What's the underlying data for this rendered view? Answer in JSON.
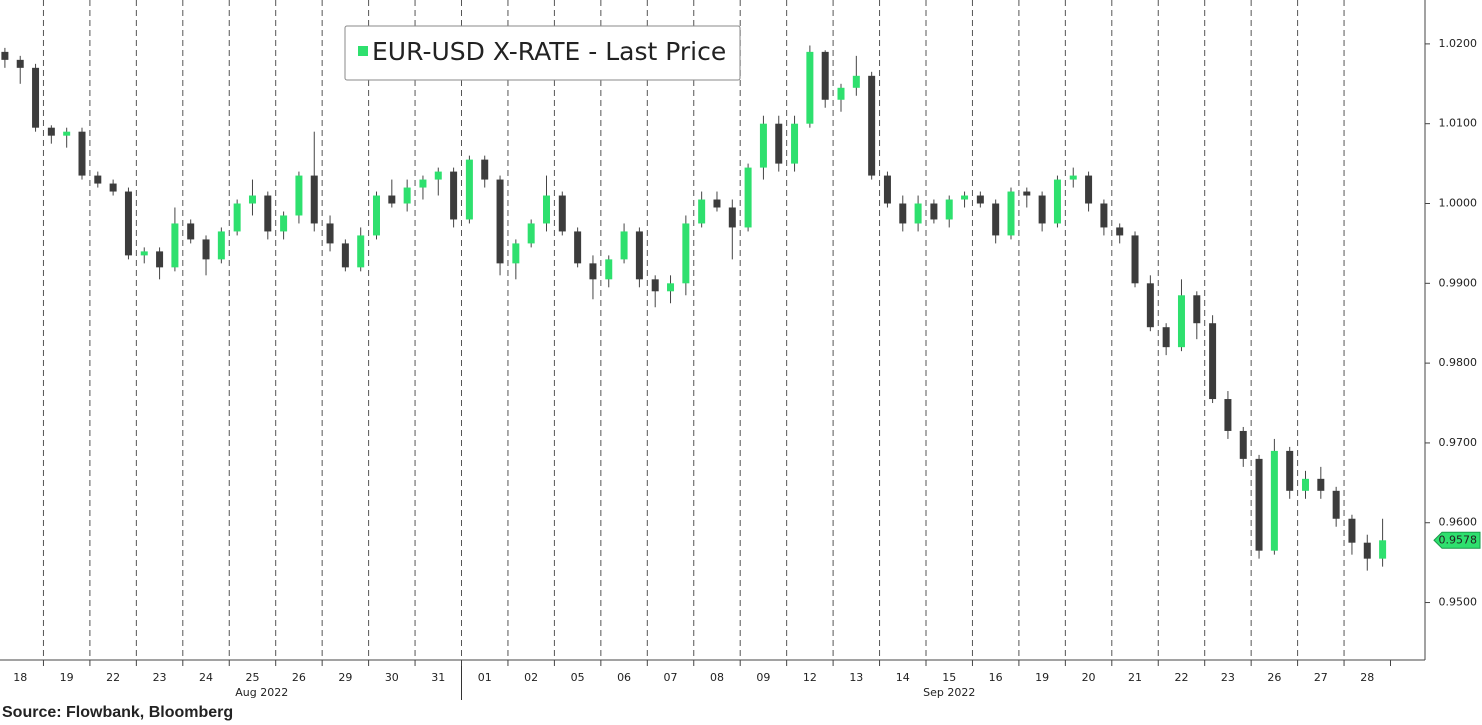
{
  "chart_data": {
    "type": "candlestick",
    "legend": "EUR-USD X-RATE - Last Price",
    "source": "Source: Flowbank, Bloomberg",
    "up_color": "#2ee06e",
    "down_color": "#3c3c3c",
    "x_group_labels": [
      "Aug 2022",
      "Sep 2022"
    ],
    "x": [
      0.17,
      0.5,
      0.83,
      1.17,
      1.5,
      1.83,
      2.17,
      2.5,
      2.83,
      3.17,
      3.5,
      3.83,
      4.17,
      4.5,
      4.83,
      5.17,
      5.5,
      5.83,
      6.17,
      6.5,
      6.83,
      7.17,
      7.5,
      7.83,
      8.17,
      8.5,
      8.83,
      9.17,
      9.5,
      9.83,
      10.17,
      10.5,
      10.83,
      11.17,
      11.5,
      11.83,
      12.17,
      12.5,
      12.83,
      13.17,
      13.5,
      13.83,
      14.17,
      14.5,
      14.83,
      15.17,
      15.5,
      15.83,
      16.17,
      16.5,
      16.83,
      17.17,
      17.5,
      17.83,
      18.17,
      18.5,
      18.83,
      19.17,
      19.5,
      19.83,
      20.17,
      20.5,
      20.83,
      21.17,
      21.5,
      21.83,
      22.17,
      22.5,
      22.83,
      23.17,
      23.5,
      23.83,
      24.17,
      24.5,
      24.83,
      25.17,
      25.5,
      25.83,
      26.17,
      26.5,
      26.83,
      27.17,
      27.5,
      27.83,
      28.17,
      28.5,
      28.83,
      29.17,
      29.5,
      29.83
    ],
    "open": [
      1.019,
      1.018,
      1.017,
      1.0095,
      1.0085,
      1.009,
      1.0035,
      1.0025,
      1.0015,
      0.9935,
      0.994,
      0.992,
      0.9975,
      0.9955,
      0.993,
      0.9965,
      1.0,
      1.001,
      0.9965,
      0.9985,
      1.0035,
      0.9975,
      0.995,
      0.992,
      0.996,
      1.001,
      1.0,
      1.002,
      1.003,
      1.004,
      0.998,
      1.0055,
      1.003,
      0.9925,
      0.995,
      0.9975,
      1.001,
      0.9965,
      0.9925,
      0.9905,
      0.993,
      0.9965,
      0.9905,
      0.989,
      0.99,
      0.9975,
      1.0005,
      0.9995,
      0.997,
      1.0045,
      1.01,
      1.005,
      1.01,
      1.019,
      1.013,
      1.0145,
      1.016,
      1.0035,
      1.0,
      0.9975,
      1.0,
      0.998,
      1.0005,
      1.001,
      1.0,
      0.996,
      1.0015,
      1.001,
      0.9975,
      1.003,
      1.0035,
      1.0,
      0.997,
      0.996,
      0.99,
      0.9845,
      0.982,
      0.9885,
      0.985,
      0.9755,
      0.9715,
      0.968,
      0.9565,
      0.969,
      0.964,
      0.9655,
      0.964,
      0.9605,
      0.9575,
      0.9555
    ],
    "high": [
      1.0195,
      1.0185,
      1.0175,
      1.0098,
      1.0095,
      1.0095,
      1.004,
      1.003,
      1.002,
      0.9945,
      0.9945,
      0.9995,
      0.998,
      0.996,
      0.997,
      1.0005,
      1.003,
      1.0015,
      0.999,
      1.004,
      1.009,
      0.9985,
      0.9955,
      0.997,
      1.0015,
      1.003,
      1.003,
      1.0035,
      1.0045,
      1.0045,
      1.006,
      1.006,
      1.0035,
      0.9955,
      0.998,
      1.0035,
      1.0015,
      0.997,
      0.9935,
      0.9935,
      0.9975,
      0.997,
      0.991,
      0.991,
      0.9985,
      1.0015,
      1.0015,
      1.0005,
      1.005,
      1.011,
      1.011,
      1.011,
      1.0198,
      1.0192,
      1.015,
      1.0185,
      1.0165,
      1.004,
      1.001,
      1.001,
      1.0005,
      1.001,
      1.0015,
      1.0015,
      1.0005,
      1.002,
      1.002,
      1.0015,
      1.0035,
      1.0045,
      1.004,
      1.0005,
      0.9975,
      0.9965,
      0.991,
      0.985,
      0.9905,
      0.989,
      0.986,
      0.9765,
      0.972,
      0.9685,
      0.9705,
      0.9695,
      0.9665,
      0.967,
      0.9645,
      0.961,
      0.9585,
      0.9605
    ],
    "low": [
      1.017,
      1.015,
      1.009,
      1.0075,
      1.007,
      1.003,
      1.002,
      1.001,
      0.993,
      0.9925,
      0.9905,
      0.9915,
      0.995,
      0.991,
      0.9925,
      0.996,
      0.9985,
      0.9955,
      0.9955,
      0.9975,
      0.9965,
      0.994,
      0.9915,
      0.9915,
      0.9955,
      0.9995,
      0.999,
      1.0005,
      1.001,
      0.997,
      0.9975,
      1.002,
      0.991,
      0.9905,
      0.9945,
      0.9965,
      0.996,
      0.992,
      0.988,
      0.9895,
      0.9925,
      0.9895,
      0.987,
      0.9875,
      0.9885,
      0.997,
      0.999,
      0.993,
      0.9965,
      1.003,
      1.004,
      1.004,
      1.0095,
      1.012,
      1.0115,
      1.0135,
      1.003,
      0.9995,
      0.9965,
      0.9965,
      0.9975,
      0.997,
      0.9995,
      0.9995,
      0.995,
      0.9955,
      0.9995,
      0.9965,
      0.997,
      1.002,
      0.999,
      0.996,
      0.995,
      0.9895,
      0.984,
      0.981,
      0.9815,
      0.983,
      0.975,
      0.9705,
      0.967,
      0.9555,
      0.956,
      0.963,
      0.963,
      0.963,
      0.9595,
      0.956,
      0.954,
      0.9545
    ],
    "close": [
      1.018,
      1.017,
      1.0095,
      1.0085,
      1.009,
      1.0035,
      1.0025,
      1.0015,
      0.9935,
      0.994,
      0.992,
      0.9975,
      0.9955,
      0.993,
      0.9965,
      1.0,
      1.001,
      0.9965,
      0.9985,
      1.0035,
      0.9975,
      0.995,
      0.992,
      0.996,
      1.001,
      1.0,
      1.002,
      1.003,
      1.004,
      0.998,
      1.0055,
      1.003,
      0.9925,
      0.995,
      0.9975,
      1.001,
      0.9965,
      0.9925,
      0.9905,
      0.993,
      0.9965,
      0.9905,
      0.989,
      0.99,
      0.9975,
      1.0005,
      0.9995,
      0.997,
      1.0045,
      1.01,
      1.005,
      1.01,
      1.019,
      1.013,
      1.0145,
      1.016,
      1.0035,
      1.0,
      0.9975,
      1.0,
      0.998,
      1.0005,
      1.001,
      1.0,
      0.996,
      1.0015,
      1.001,
      0.9975,
      1.003,
      1.0035,
      1.0,
      0.997,
      0.996,
      0.99,
      0.9845,
      0.982,
      0.9885,
      0.985,
      0.9755,
      0.9715,
      0.968,
      0.9565,
      0.969,
      0.964,
      0.9655,
      0.964,
      0.9605,
      0.9575,
      0.9555,
      0.9578
    ],
    "xlim": [
      0,
      30
    ],
    "xticks": [
      {
        "value": 0.5,
        "label": "18"
      },
      {
        "value": 1.5,
        "label": "19"
      },
      {
        "value": 2.5,
        "label": "22"
      },
      {
        "value": 3.5,
        "label": "23"
      },
      {
        "value": 4.5,
        "label": "24"
      },
      {
        "value": 5.5,
        "label": "25"
      },
      {
        "value": 6.5,
        "label": "26"
      },
      {
        "value": 7.5,
        "label": "29"
      },
      {
        "value": 8.5,
        "label": "30"
      },
      {
        "value": 9.5,
        "label": "31"
      },
      {
        "value": 10.5,
        "label": "01"
      },
      {
        "value": 11.5,
        "label": "02"
      },
      {
        "value": 12.5,
        "label": "05"
      },
      {
        "value": 13.5,
        "label": "06"
      },
      {
        "value": 14.5,
        "label": "07"
      },
      {
        "value": 15.5,
        "label": "08"
      },
      {
        "value": 16.5,
        "label": "09"
      },
      {
        "value": 17.5,
        "label": "12"
      },
      {
        "value": 18.5,
        "label": "13"
      },
      {
        "value": 19.5,
        "label": "14"
      },
      {
        "value": 20.5,
        "label": "15"
      },
      {
        "value": 21.5,
        "label": "16"
      },
      {
        "value": 22.5,
        "label": "19"
      },
      {
        "value": 23.5,
        "label": "20"
      },
      {
        "value": 24.5,
        "label": "21"
      },
      {
        "value": 25.5,
        "label": "22"
      },
      {
        "value": 26.5,
        "label": "23"
      },
      {
        "value": 27.5,
        "label": "26"
      },
      {
        "value": 28.5,
        "label": "27"
      },
      {
        "value": 29.5,
        "label": "28"
      }
    ],
    "ylim": [
      0.9428,
      1.0255
    ],
    "yticks": [
      {
        "value": 0.95,
        "label": "0.9500"
      },
      {
        "value": 0.96,
        "label": "0.9600"
      },
      {
        "value": 0.97,
        "label": "0.9700"
      },
      {
        "value": 0.98,
        "label": "0.9800"
      },
      {
        "value": 0.99,
        "label": "0.9900"
      },
      {
        "value": 1.0,
        "label": "1.0000"
      },
      {
        "value": 1.01,
        "label": "1.0100"
      },
      {
        "value": 1.02,
        "label": "1.0200"
      }
    ]
  }
}
